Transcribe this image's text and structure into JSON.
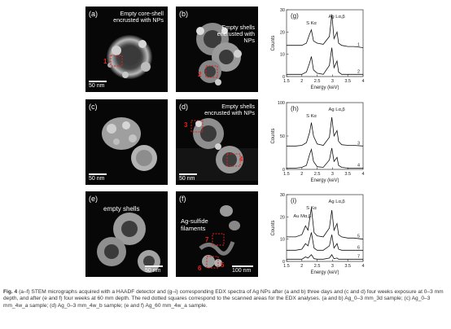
{
  "figure": {
    "panels": {
      "a": {
        "label": "(a)",
        "annotation": "Empty core-shell encrusted with NPs",
        "scalebar": "50 nm",
        "regions": [
          "1"
        ]
      },
      "b": {
        "label": "(b)",
        "annotation": "Empty shells encrusted with NPs",
        "regions": [
          "2"
        ]
      },
      "c": {
        "label": "(c)",
        "scalebar": "50 nm"
      },
      "d": {
        "label": "(d)",
        "annotation": "Empty shells encrusted with NPs",
        "scalebar": "50 nm",
        "regions": [
          "3",
          "4"
        ]
      },
      "e": {
        "label": "(e)",
        "annotation": "empty shells",
        "scalebar": "50 nm"
      },
      "f": {
        "label": "(f)",
        "annotation": "Ag-sulfide filaments",
        "scalebar": "100 nm",
        "regions": [
          "7",
          "5",
          "6"
        ]
      }
    },
    "caption": {
      "figure_no": "Fig. 4",
      "text": "(a–f) STEM micrographs acquired with a HAADF detector and (g–i) corresponding EDX spectra of Ag NPs after (a and b) three days and (c and d) four weeks exposure at 0–3 mm depth, and after (e and f) four weeks at 60 mm depth. The red dotted squares correspond to the scanned areas for the EDX analyses. (a and b) Ag_0–3 mm_3d sample; (c) Ag_0–3 mm_4w_a sample; (d) Ag_0–3 mm_4w_b sample; (e and f) Ag_60 mm_4w_a sample."
    }
  },
  "chart_data": [
    {
      "type": "line",
      "panel": "(g)",
      "xlabel": "Energy (keV)",
      "ylabel": "Counts",
      "xlim": [
        1.5,
        4
      ],
      "xticks": [
        "1.5",
        "2",
        "2.5",
        "3",
        "3.5",
        "4"
      ],
      "yticks": [
        "0",
        "10",
        "20",
        "30"
      ],
      "ylim": [
        0,
        30
      ],
      "peaks": [
        {
          "label": "S Kα",
          "energy": 2.31
        },
        {
          "label": "Ag Lα,β",
          "energy": 2.98
        }
      ],
      "series": [
        {
          "name": "1",
          "x": [
            1.5,
            1.8,
            2.0,
            2.15,
            2.25,
            2.31,
            2.38,
            2.5,
            2.7,
            2.9,
            2.98,
            3.05,
            3.15,
            3.2,
            3.3,
            3.5,
            3.7,
            4.0
          ],
          "y": [
            14,
            14,
            14,
            15,
            19,
            21,
            16,
            15,
            14.5,
            18,
            28,
            17,
            20,
            15,
            14,
            13.5,
            13.5,
            13
          ]
        },
        {
          "name": "2",
          "x": [
            1.5,
            1.8,
            2.0,
            2.15,
            2.25,
            2.31,
            2.38,
            2.5,
            2.7,
            2.9,
            2.98,
            3.05,
            3.15,
            3.2,
            3.3,
            3.5,
            3.7,
            4.0
          ],
          "y": [
            1,
            1,
            1,
            2,
            6,
            9,
            3,
            1.5,
            1,
            5,
            13,
            4,
            7,
            2,
            1,
            1,
            1,
            1
          ]
        }
      ]
    },
    {
      "type": "line",
      "panel": "(h)",
      "xlabel": "Energy (keV)",
      "ylabel": "Counts",
      "xlim": [
        1.5,
        4
      ],
      "xticks": [
        "1.5",
        "2",
        "2.5",
        "3",
        "3.5",
        "4"
      ],
      "yticks": [
        "0",
        "50",
        "100"
      ],
      "ylim": [
        0,
        100
      ],
      "peaks": [
        {
          "label": "S Kα",
          "energy": 2.31
        },
        {
          "label": "Ag Lα,β",
          "energy": 2.98
        }
      ],
      "series": [
        {
          "name": "3",
          "x": [
            1.5,
            1.8,
            2.0,
            2.15,
            2.25,
            2.31,
            2.38,
            2.5,
            2.7,
            2.9,
            2.98,
            3.05,
            3.15,
            3.2,
            3.3,
            3.5,
            3.7,
            4.0
          ],
          "y": [
            35,
            35,
            36,
            40,
            55,
            70,
            50,
            38,
            36,
            48,
            78,
            50,
            58,
            42,
            37,
            36,
            36,
            35
          ]
        },
        {
          "name": "4",
          "x": [
            1.5,
            1.8,
            2.0,
            2.15,
            2.25,
            2.31,
            2.38,
            2.5,
            2.7,
            2.9,
            2.98,
            3.05,
            3.15,
            3.2,
            3.3,
            3.5,
            3.7,
            4.0
          ],
          "y": [
            2,
            2,
            3,
            6,
            22,
            30,
            12,
            4,
            3,
            14,
            32,
            12,
            18,
            6,
            3,
            2,
            2,
            2
          ]
        }
      ]
    },
    {
      "type": "line",
      "panel": "(i)",
      "xlabel": "Energy (keV)",
      "ylabel": "Counts",
      "xlim": [
        1.5,
        4
      ],
      "xticks": [
        "1.5",
        "2",
        "2.5",
        "3",
        "3.5",
        "4"
      ],
      "yticks": [
        "0",
        "10",
        "20",
        "30"
      ],
      "ylim": [
        0,
        30
      ],
      "peaks": [
        {
          "label": "Au Mα,β",
          "energy": 2.12
        },
        {
          "label": "S Kα",
          "energy": 2.31
        },
        {
          "label": "Ag Lα,β",
          "energy": 2.98
        }
      ],
      "series": [
        {
          "name": "5",
          "x": [
            1.5,
            1.8,
            2.0,
            2.12,
            2.2,
            2.31,
            2.4,
            2.5,
            2.7,
            2.9,
            2.98,
            3.05,
            3.15,
            3.2,
            3.3,
            3.5,
            3.7,
            4.0
          ],
          "y": [
            11,
            11,
            12,
            16,
            14,
            24,
            13,
            11.5,
            11,
            15,
            23,
            14,
            17,
            12,
            11,
            10.5,
            10.5,
            10
          ]
        },
        {
          "name": "6",
          "x": [
            1.5,
            1.8,
            2.0,
            2.12,
            2.2,
            2.31,
            2.4,
            2.5,
            2.7,
            2.9,
            2.98,
            3.05,
            3.15,
            3.2,
            3.3,
            3.5,
            3.7,
            4.0
          ],
          "y": [
            5,
            5,
            5.5,
            8,
            7,
            13,
            6,
            5,
            5,
            7,
            12,
            6,
            8,
            5.5,
            5,
            5,
            5,
            5
          ]
        },
        {
          "name": "7",
          "x": [
            1.5,
            1.8,
            2.0,
            2.12,
            2.2,
            2.31,
            2.4,
            2.5,
            2.7,
            2.9,
            2.98,
            3.05,
            3.15,
            3.2,
            3.3,
            3.5,
            3.7,
            4.0
          ],
          "y": [
            1,
            1,
            1,
            2,
            1.5,
            3,
            1.2,
            1,
            1,
            1.5,
            3,
            1.2,
            1.5,
            1,
            1,
            1,
            1,
            1
          ]
        }
      ]
    }
  ]
}
